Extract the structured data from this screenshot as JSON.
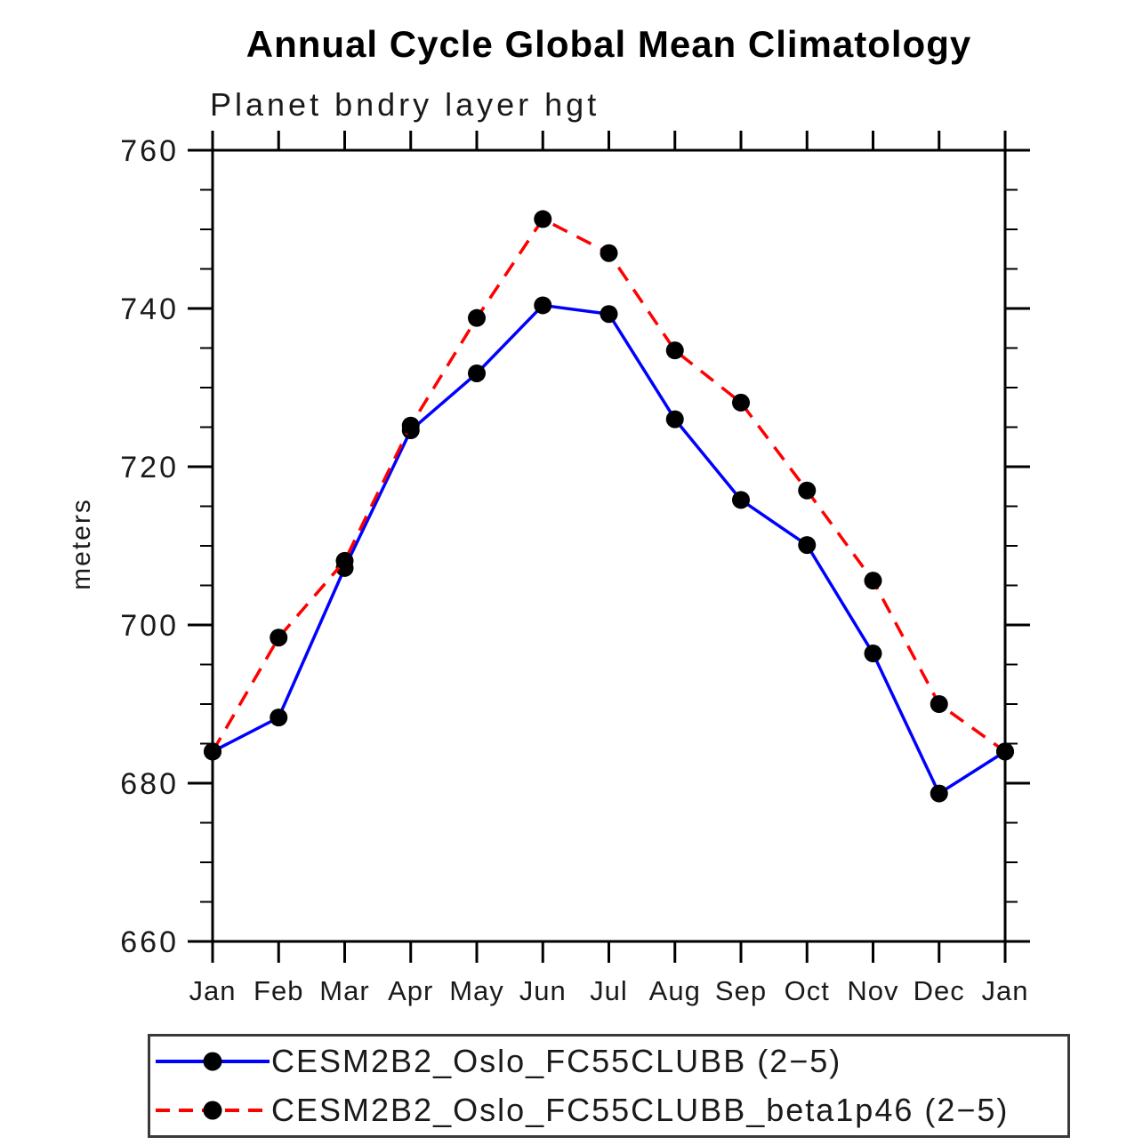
{
  "chart_data": {
    "type": "line",
    "title": "Annual Cycle Global Mean Climatology",
    "subtitle": "Planet bndry layer hgt",
    "ylabel": "meters",
    "xlabel": "",
    "categories": [
      "Jan",
      "Feb",
      "Mar",
      "Apr",
      "May",
      "Jun",
      "Jul",
      "Aug",
      "Sep",
      "Oct",
      "Nov",
      "Dec",
      "Jan"
    ],
    "ylim": [
      660,
      760
    ],
    "ytick_major": [
      660,
      680,
      700,
      720,
      740,
      760
    ],
    "ytick_minor_step": 5,
    "grid": false,
    "legend_position": "bottom",
    "axis_color": "#000000",
    "marker": "filled-circle",
    "marker_color": "#000000",
    "series": [
      {
        "name": "CESM2B2_Oslo_FC55CLUBB (2−5)",
        "color": "#0000ff",
        "style": "solid",
        "values": [
          684.0,
          688.3,
          707.2,
          724.6,
          731.8,
          740.4,
          739.3,
          726.0,
          715.8,
          710.1,
          696.4,
          678.7,
          684.0
        ]
      },
      {
        "name": "CESM2B2_Oslo_FC55CLUBB_beta1p46 (2−5)",
        "color": "#ff0000",
        "style": "dashed",
        "values": [
          684.0,
          698.4,
          708.1,
          725.2,
          738.8,
          751.3,
          747.0,
          734.7,
          728.1,
          717.0,
          705.6,
          690.0,
          684.0
        ]
      }
    ]
  }
}
